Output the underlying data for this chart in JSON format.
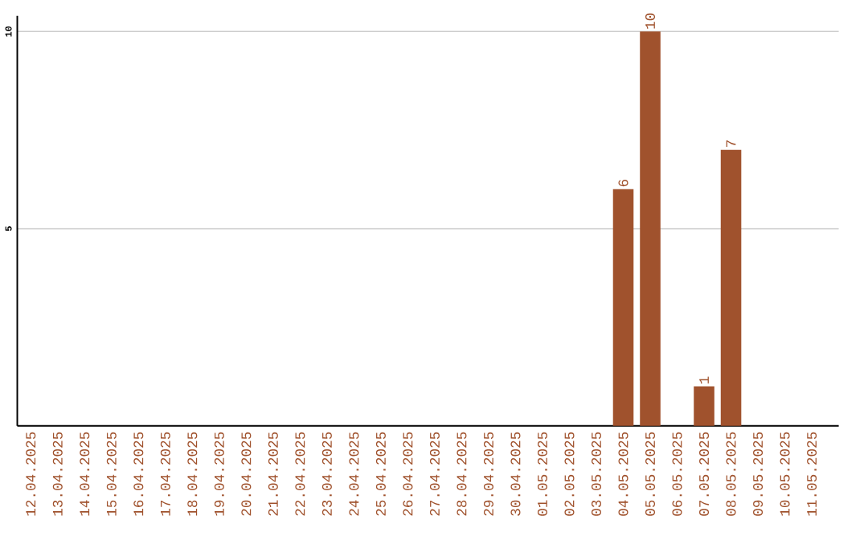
{
  "chart_data": {
    "type": "bar",
    "categories": [
      "12.04.2025",
      "13.04.2025",
      "14.04.2025",
      "15.04.2025",
      "16.04.2025",
      "17.04.2025",
      "18.04.2025",
      "19.04.2025",
      "20.04.2025",
      "21.04.2025",
      "22.04.2025",
      "23.04.2025",
      "24.04.2025",
      "25.04.2025",
      "26.04.2025",
      "27.04.2025",
      "28.04.2025",
      "29.04.2025",
      "30.04.2025",
      "01.05.2025",
      "02.05.2025",
      "03.05.2025",
      "04.05.2025",
      "05.05.2025",
      "06.05.2025",
      "07.05.2025",
      "08.05.2025",
      "09.05.2025",
      "10.05.2025",
      "11.05.2025"
    ],
    "values": [
      0,
      0,
      0,
      0,
      0,
      0,
      0,
      0,
      0,
      0,
      0,
      0,
      0,
      0,
      0,
      0,
      0,
      0,
      0,
      0,
      0,
      0,
      6,
      10,
      0,
      1,
      7,
      0,
      0,
      0
    ],
    "value_labels": [
      null,
      null,
      null,
      null,
      null,
      null,
      null,
      null,
      null,
      null,
      null,
      null,
      null,
      null,
      null,
      null,
      null,
      null,
      null,
      null,
      null,
      null,
      "6",
      "10",
      null,
      "1",
      "7",
      null,
      null,
      null
    ],
    "color": "#a0522d",
    "ylim": [
      0,
      10.4
    ],
    "yticks": [
      5,
      10
    ],
    "grid": "y"
  }
}
